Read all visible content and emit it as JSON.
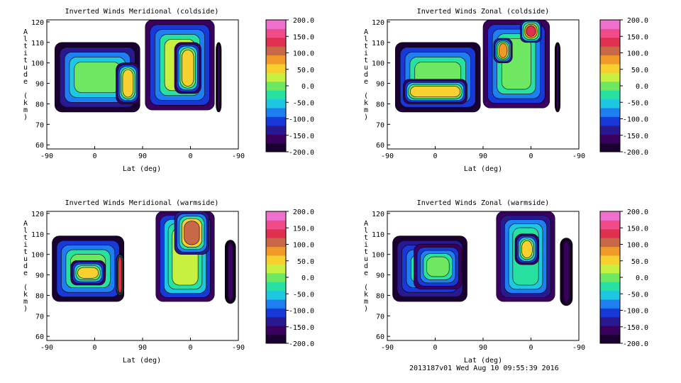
{
  "footer_stamp": "2013187v01 Wed Aug 10 09:55:39 2016",
  "colorbar": {
    "ticks": [
      "200.0",
      "150.0",
      "100.0",
      "50.0",
      "0.0",
      "-50.0",
      "-100.0",
      "-150.0",
      "-200.0"
    ],
    "colors": [
      "#1a0030",
      "#3a0060",
      "#2a1890",
      "#1838d8",
      "#1f7ef0",
      "#1ec8e0",
      "#28e0a0",
      "#6ee860",
      "#c8f040",
      "#f8d030",
      "#f09828",
      "#c86848",
      "#e03050",
      "#f04a88",
      "#f070d0"
    ]
  },
  "chart_data": [
    {
      "type": "heatmap",
      "title": "Inverted Winds Meridional (coldside)",
      "xlabel": "Lat (deg)",
      "ylabel": "Altitude (km)",
      "xticks": [
        "-90",
        "0",
        "90",
        "0",
        "-90"
      ],
      "yticks": [
        "120",
        "110",
        "100",
        "90",
        "80",
        "70",
        "60"
      ],
      "ylim": [
        58,
        121
      ],
      "zlim": [
        -200,
        200
      ],
      "contour_bands": [
        {
          "alt_range": [
            76,
            110
          ],
          "x_range": [
            -75,
            85
          ],
          "level": -10
        },
        {
          "alt_range": [
            80,
            100
          ],
          "x_range": [
            40,
            85
          ],
          "level": 40
        },
        {
          "alt_range": [
            77,
            121
          ],
          "x_range": [
            95,
            225
          ],
          "level": 20
        },
        {
          "alt_range": [
            85,
            110
          ],
          "x_range": [
            150,
            200
          ],
          "level": 60
        },
        {
          "alt_range": [
            76,
            110
          ],
          "x_range": [
            228,
            238
          ],
          "level": -150
        }
      ]
    },
    {
      "type": "heatmap",
      "title": "Inverted Winds Zonal (coldside)",
      "xlabel": "Lat (deg)",
      "ylabel": "Altitude (km)",
      "xticks": [
        "-90",
        "0",
        "90",
        "0",
        "-90"
      ],
      "yticks": [
        "120",
        "110",
        "100",
        "90",
        "80",
        "70",
        "60"
      ],
      "ylim": [
        58,
        121
      ],
      "zlim": [
        -200,
        200
      ],
      "contour_bands": [
        {
          "alt_range": [
            76,
            110
          ],
          "x_range": [
            -75,
            85
          ],
          "level": 0
        },
        {
          "alt_range": [
            80,
            92
          ],
          "x_range": [
            -60,
            60
          ],
          "level": 60
        },
        {
          "alt_range": [
            78,
            121
          ],
          "x_range": [
            90,
            215
          ],
          "level": 10
        },
        {
          "alt_range": [
            110,
            121
          ],
          "x_range": [
            160,
            200
          ],
          "level": 140
        },
        {
          "alt_range": [
            100,
            112
          ],
          "x_range": [
            110,
            145
          ],
          "level": 90
        },
        {
          "alt_range": [
            76,
            110
          ],
          "x_range": [
            225,
            235
          ],
          "level": -150
        }
      ]
    },
    {
      "type": "heatmap",
      "title": "Inverted Winds Meridional (warmside)",
      "xlabel": "Lat (deg)",
      "ylabel": "Altitude (km)",
      "xticks": [
        "-90",
        "0",
        "90",
        "0",
        "-90"
      ],
      "yticks": [
        "120",
        "110",
        "100",
        "90",
        "80",
        "70",
        "60"
      ],
      "ylim": [
        58,
        121
      ],
      "zlim": [
        -200,
        200
      ],
      "contour_bands": [
        {
          "alt_range": [
            77,
            109
          ],
          "x_range": [
            -80,
            55
          ],
          "level": 10
        },
        {
          "alt_range": [
            85,
            97
          ],
          "x_range": [
            -45,
            20
          ],
          "level": 55
        },
        {
          "alt_range": [
            80,
            100
          ],
          "x_range": [
            40,
            55
          ],
          "level": 140
        },
        {
          "alt_range": [
            77,
            121
          ],
          "x_range": [
            115,
            225
          ],
          "level": 30
        },
        {
          "alt_range": [
            100,
            121
          ],
          "x_range": [
            150,
            215
          ],
          "level": 110
        },
        {
          "alt_range": [
            76,
            107
          ],
          "x_range": [
            245,
            265
          ],
          "level": -160
        }
      ]
    },
    {
      "type": "heatmap",
      "title": "Inverted Winds Zonal (warmside)",
      "xlabel": "Lat (deg)",
      "ylabel": "Altitude (km)",
      "xticks": [
        "-90",
        "0",
        "90",
        "0",
        "-90"
      ],
      "yticks": [
        "120",
        "110",
        "100",
        "90",
        "80",
        "70",
        "60"
      ],
      "ylim": [
        58,
        121
      ],
      "zlim": [
        -200,
        200
      ],
      "contour_bands": [
        {
          "alt_range": [
            77,
            109
          ],
          "x_range": [
            -80,
            60
          ],
          "level": -40
        },
        {
          "alt_range": [
            83,
            105
          ],
          "x_range": [
            -40,
            50
          ],
          "level": 0
        },
        {
          "alt_range": [
            77,
            121
          ],
          "x_range": [
            115,
            225
          ],
          "level": -20
        },
        {
          "alt_range": [
            95,
            110
          ],
          "x_range": [
            150,
            195
          ],
          "level": 40
        },
        {
          "alt_range": [
            75,
            108
          ],
          "x_range": [
            235,
            258
          ],
          "level": -160
        }
      ]
    }
  ]
}
